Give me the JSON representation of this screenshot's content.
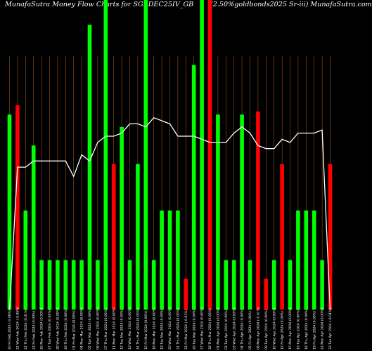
{
  "header": {
    "left": "MunafaSutra  Money Flow  Charts for SGBDEC25IV_GB",
    "right": "(2.50%goldbonds2025 Sr-iii) MunafaSutra.com"
  },
  "colors": {
    "background": "#000000",
    "up": "#00ff00",
    "down": "#ff0000",
    "line": "#ffffff",
    "grid": "#b8621b"
  },
  "chart_data": {
    "type": "bar",
    "title": "MunafaSutra  Money Flow  Charts for SGBDEC25IV_GB",
    "subtitle": "(2.50%goldbonds2025 Sr-iii) MunafaSutra.com",
    "categories": [
      "20 Fri Feb 2024 (-0.08%)",
      "21 Wed Feb 2024 (-0.06%)",
      "22 Thu Feb 2024 (0.01%)",
      "23 Fri Feb 2024 (0.00%)",
      "26 Mon Feb 2024 (0.00%)",
      "27 Tue Feb 2024 (0.00%)",
      "28 Wed Feb 2024 (0.00%)",
      "29 Thu Feb 2024 (0.00%)",
      "01 Fri Mar 2024 (0.00%)",
      "04 Mon Mar 2024 (0.00%)",
      "05 Tue Mar 2024 (0.00%)",
      "06 Wed Mar 2024 (0.00%)",
      "07 Thu Mar 2024 (0.00%)",
      "11 Mon Mar 2024 (0.00%)",
      "12 Tue Mar 2024 (0.00%)",
      "13 Wed Mar 2024 (0.00%)",
      "14 Thu Mar 2024 (0.00%)",
      "15 Fri Mar 2024 (0.00%)",
      "18 Mon Mar 2024 (0.00%)",
      "19 Tue Mar 2024 (0.00%)",
      "20 Wed Mar 2024 (0.00%)",
      "21 Thu Mar 2024 (0.00%)",
      "22 Fri Mar 2024 (-0.01%)",
      "26 Tue Mar 2024 (0.00%)",
      "27 Wed Mar 2024 (0.00%)",
      "28 Thu Mar 2024 (0.00%)",
      "01 Mon Apr 2024 (0.00%)",
      "02 Tue Apr 2024 (0.00%)",
      "03 Wed Apr 2024 (0.00%)",
      "04 Thu Apr 2024 (0.00%)",
      "05 Fri Apr 2024 (0.00%)",
      "08 Mon Apr 2024 (-0.01%)",
      "09 Tue Apr 2024 (0.00%)",
      "10 Wed Apr 2024 (0.00%)",
      "12 Fri Apr 2024 (0.00%)",
      "15 Mon Apr 2024 (0.00%)",
      "16 Tue Apr 2024 (0.00%)",
      "18 Thu Apr 2024 (0.00%)",
      "19 Fri Apr 2024 (0.00%)",
      "22 Mon Apr 2024 (0.00%)",
      "23 Tue Apr 2024 (-0.04%)"
    ],
    "bars": [
      {
        "value": 63,
        "color": "green"
      },
      {
        "value": 66,
        "color": "red"
      },
      {
        "value": 32,
        "color": "green"
      },
      {
        "value": 53,
        "color": "green"
      },
      {
        "value": 16,
        "color": "green"
      },
      {
        "value": 16,
        "color": "green"
      },
      {
        "value": 16,
        "color": "green"
      },
      {
        "value": 16,
        "color": "green"
      },
      {
        "value": 16,
        "color": "green"
      },
      {
        "value": 16,
        "color": "green"
      },
      {
        "value": 92,
        "color": "green"
      },
      {
        "value": 16,
        "color": "green"
      },
      {
        "value": 100,
        "color": "green"
      },
      {
        "value": 47,
        "color": "red"
      },
      {
        "value": 59,
        "color": "green"
      },
      {
        "value": 16,
        "color": "green"
      },
      {
        "value": 47,
        "color": "green"
      },
      {
        "value": 100,
        "color": "green"
      },
      {
        "value": 16,
        "color": "green"
      },
      {
        "value": 32,
        "color": "green"
      },
      {
        "value": 32,
        "color": "green"
      },
      {
        "value": 32,
        "color": "green"
      },
      {
        "value": 10,
        "color": "red"
      },
      {
        "value": 79,
        "color": "green"
      },
      {
        "value": 100,
        "color": "green"
      },
      {
        "value": 100,
        "color": "red"
      },
      {
        "value": 63,
        "color": "green"
      },
      {
        "value": 16,
        "color": "green"
      },
      {
        "value": 16,
        "color": "green"
      },
      {
        "value": 63,
        "color": "green"
      },
      {
        "value": 16,
        "color": "green"
      },
      {
        "value": 64,
        "color": "red"
      },
      {
        "value": 10,
        "color": "red"
      },
      {
        "value": 16,
        "color": "green"
      },
      {
        "value": 47,
        "color": "red"
      },
      {
        "value": 16,
        "color": "green"
      },
      {
        "value": 32,
        "color": "green"
      },
      {
        "value": 32,
        "color": "green"
      },
      {
        "value": 32,
        "color": "green"
      },
      {
        "value": 16,
        "color": "green"
      },
      {
        "value": 47,
        "color": "red"
      }
    ],
    "line": [
      0,
      46,
      46,
      48,
      48,
      48,
      48,
      48,
      43,
      50,
      48,
      54,
      56,
      56,
      57,
      60,
      60,
      59,
      62,
      61,
      60,
      56,
      56,
      56,
      55,
      54,
      54,
      54,
      57,
      59,
      57,
      53,
      52,
      52,
      55,
      54,
      57,
      57,
      57,
      58,
      0
    ],
    "ylim": [
      0,
      100
    ],
    "grid": true
  }
}
